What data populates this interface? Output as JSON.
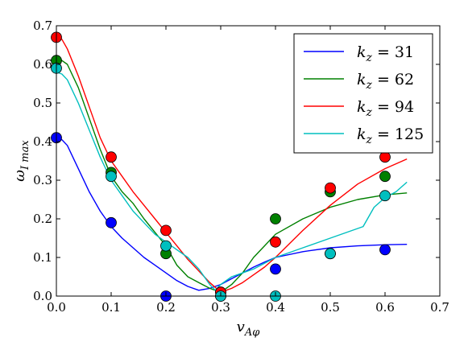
{
  "chart_data": {
    "type": "line",
    "xlabel": "v_{Aφ}",
    "ylabel": "ω_{I max}",
    "xlim": [
      0,
      0.7
    ],
    "ylim": [
      0,
      0.7
    ],
    "xticks": [
      "0.0",
      "0.1",
      "0.2",
      "0.3",
      "0.4",
      "0.5",
      "0.6",
      "0.7"
    ],
    "yticks": [
      "0.0",
      "0.1",
      "0.2",
      "0.3",
      "0.4",
      "0.5",
      "0.6",
      "0.7"
    ],
    "grid": false,
    "legend_position": "top-right",
    "series": [
      {
        "name": "k_z = 31",
        "color": "#0000ff",
        "line": {
          "x": [
            0.0,
            0.01,
            0.02,
            0.04,
            0.06,
            0.08,
            0.1,
            0.12,
            0.14,
            0.16,
            0.18,
            0.2,
            0.22,
            0.24,
            0.26,
            0.28,
            0.3,
            0.32,
            0.34,
            0.36,
            0.38,
            0.4,
            0.45,
            0.5,
            0.55,
            0.6,
            0.64
          ],
          "y": [
            0.41,
            0.405,
            0.39,
            0.33,
            0.27,
            0.22,
            0.18,
            0.15,
            0.125,
            0.1,
            0.08,
            0.06,
            0.04,
            0.025,
            0.015,
            0.02,
            0.03,
            0.045,
            0.06,
            0.075,
            0.088,
            0.1,
            0.115,
            0.125,
            0.13,
            0.133,
            0.134
          ]
        },
        "points": {
          "x": [
            0.0,
            0.1,
            0.2,
            0.3,
            0.4,
            0.5,
            0.6
          ],
          "y": [
            0.41,
            0.19,
            0.0,
            0.0,
            0.07,
            0.11,
            0.12
          ]
        }
      },
      {
        "name": "k_z = 62",
        "color": "#008000",
        "line": {
          "x": [
            0.0,
            0.01,
            0.02,
            0.04,
            0.06,
            0.08,
            0.1,
            0.12,
            0.14,
            0.16,
            0.18,
            0.2,
            0.22,
            0.24,
            0.26,
            0.28,
            0.3,
            0.32,
            0.34,
            0.36,
            0.38,
            0.4,
            0.45,
            0.5,
            0.55,
            0.6,
            0.64
          ],
          "y": [
            0.61,
            0.61,
            0.6,
            0.54,
            0.46,
            0.38,
            0.31,
            0.27,
            0.24,
            0.2,
            0.165,
            0.13,
            0.08,
            0.05,
            0.035,
            0.02,
            0.01,
            0.03,
            0.06,
            0.1,
            0.13,
            0.16,
            0.2,
            0.23,
            0.25,
            0.262,
            0.267
          ]
        },
        "points": {
          "x": [
            0.0,
            0.1,
            0.2,
            0.3,
            0.4,
            0.5,
            0.6
          ],
          "y": [
            0.61,
            0.32,
            0.11,
            0.01,
            0.2,
            0.27,
            0.31
          ]
        }
      },
      {
        "name": "k_z = 94",
        "color": "#ff0000",
        "line": {
          "x": [
            0.0,
            0.01,
            0.02,
            0.04,
            0.06,
            0.08,
            0.1,
            0.12,
            0.14,
            0.16,
            0.18,
            0.2,
            0.22,
            0.24,
            0.26,
            0.28,
            0.3,
            0.32,
            0.34,
            0.36,
            0.38,
            0.4,
            0.45,
            0.5,
            0.55,
            0.6,
            0.64
          ],
          "y": [
            0.67,
            0.665,
            0.64,
            0.57,
            0.49,
            0.41,
            0.35,
            0.31,
            0.27,
            0.235,
            0.2,
            0.165,
            0.13,
            0.095,
            0.065,
            0.035,
            0.01,
            0.02,
            0.035,
            0.055,
            0.075,
            0.1,
            0.17,
            0.235,
            0.29,
            0.33,
            0.355
          ]
        },
        "points": {
          "x": [
            0.0,
            0.1,
            0.2,
            0.3,
            0.4,
            0.5,
            0.6
          ],
          "y": [
            0.67,
            0.36,
            0.17,
            0.01,
            0.14,
            0.28,
            0.36
          ]
        }
      },
      {
        "name": "k_z = 125",
        "color": "#00bfbf",
        "line": {
          "x": [
            0.0,
            0.01,
            0.02,
            0.04,
            0.06,
            0.08,
            0.1,
            0.12,
            0.14,
            0.16,
            0.18,
            0.2,
            0.22,
            0.24,
            0.26,
            0.28,
            0.29,
            0.3,
            0.32,
            0.34,
            0.36,
            0.38,
            0.4,
            0.45,
            0.5,
            0.56,
            0.58,
            0.6,
            0.62,
            0.64
          ],
          "y": [
            0.58,
            0.575,
            0.56,
            0.5,
            0.43,
            0.36,
            0.3,
            0.26,
            0.22,
            0.19,
            0.16,
            0.14,
            0.12,
            0.1,
            0.07,
            0.03,
            0.015,
            0.03,
            0.05,
            0.06,
            0.07,
            0.085,
            0.1,
            0.125,
            0.15,
            0.18,
            0.23,
            0.255,
            0.27,
            0.295
          ]
        },
        "points": {
          "x": [
            0.0,
            0.1,
            0.2,
            0.3,
            0.4,
            0.5,
            0.6
          ],
          "y": [
            0.59,
            0.31,
            0.13,
            0.0,
            0.0,
            0.11,
            0.26
          ]
        }
      }
    ]
  }
}
